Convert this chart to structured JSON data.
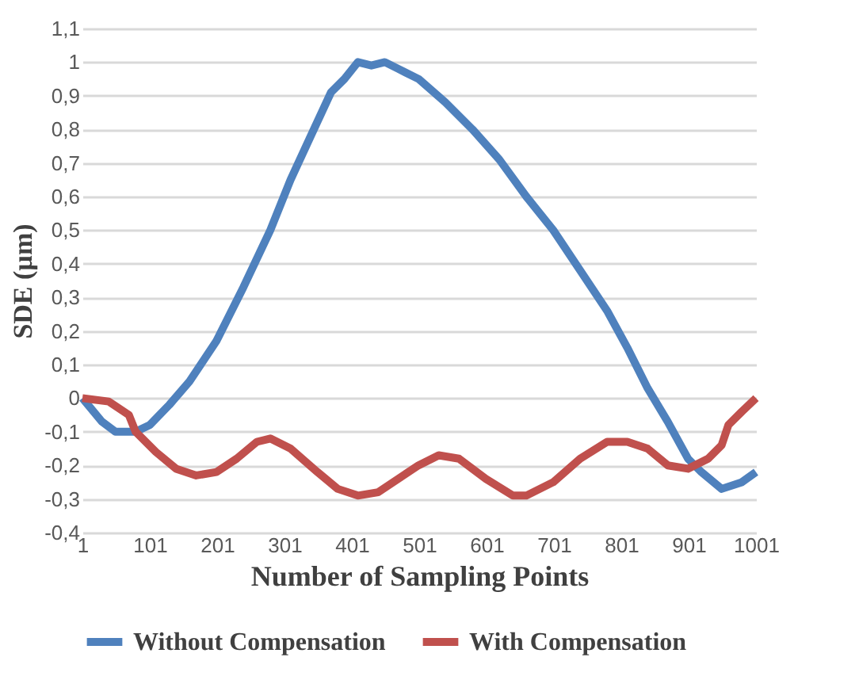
{
  "chart_data": {
    "type": "line",
    "xlabel": "Number of Sampling Points",
    "ylabel": "SDE (µm)",
    "xlim": [
      1,
      1001
    ],
    "xticks": [
      1,
      101,
      201,
      301,
      401,
      501,
      601,
      701,
      801,
      901,
      1001
    ],
    "ylim": [
      -0.4,
      1.1
    ],
    "yticks": [
      {
        "value": -0.4,
        "label": "-0,4"
      },
      {
        "value": -0.3,
        "label": "-0,3"
      },
      {
        "value": -0.2,
        "label": "-0,2"
      },
      {
        "value": -0.1,
        "label": "-0,1"
      },
      0,
      {
        "value": 0.1,
        "label": "0,1"
      },
      {
        "value": 0.2,
        "label": "0,2"
      },
      {
        "value": 0.3,
        "label": "0,3"
      },
      {
        "value": 0.4,
        "label": "0,4"
      },
      {
        "value": 0.5,
        "label": "0,5"
      },
      {
        "value": 0.6,
        "label": "0,6"
      },
      {
        "value": 0.7,
        "label": "0,7"
      },
      {
        "value": 0.8,
        "label": "0,8"
      },
      {
        "value": 0.9,
        "label": "0,9"
      },
      1,
      {
        "value": 1.1,
        "label": "1,1"
      }
    ],
    "grid": "y",
    "legend": "bottom",
    "marker": "none",
    "line_style": "solid",
    "series": [
      {
        "name": "Without Compensation",
        "color": "#4f81bd",
        "x": [
          1,
          30,
          50,
          80,
          101,
          130,
          160,
          200,
          240,
          280,
          310,
          340,
          370,
          390,
          410,
          430,
          450,
          470,
          500,
          540,
          580,
          620,
          660,
          700,
          740,
          780,
          810,
          840,
          870,
          900,
          920,
          950,
          980,
          1001
        ],
        "values": [
          0,
          -0.07,
          -0.1,
          -0.1,
          -0.08,
          -0.02,
          0.05,
          0.17,
          0.33,
          0.5,
          0.65,
          0.78,
          0.91,
          0.95,
          1.0,
          0.99,
          1.0,
          0.98,
          0.95,
          0.88,
          0.8,
          0.71,
          0.6,
          0.5,
          0.38,
          0.26,
          0.15,
          0.03,
          -0.07,
          -0.18,
          -0.22,
          -0.27,
          -0.25,
          -0.22
        ]
      },
      {
        "name": "With Compensation",
        "color": "#c0504d",
        "x": [
          1,
          40,
          70,
          80,
          110,
          140,
          170,
          200,
          230,
          260,
          280,
          310,
          350,
          380,
          410,
          440,
          470,
          500,
          530,
          560,
          600,
          640,
          660,
          700,
          740,
          780,
          810,
          840,
          870,
          900,
          930,
          950,
          960,
          980,
          1001
        ],
        "values": [
          0,
          -0.01,
          -0.05,
          -0.1,
          -0.16,
          -0.21,
          -0.23,
          -0.22,
          -0.18,
          -0.13,
          -0.12,
          -0.15,
          -0.22,
          -0.27,
          -0.29,
          -0.28,
          -0.24,
          -0.2,
          -0.17,
          -0.18,
          -0.24,
          -0.29,
          -0.29,
          -0.25,
          -0.18,
          -0.13,
          -0.13,
          -0.15,
          -0.2,
          -0.21,
          -0.18,
          -0.14,
          -0.08,
          -0.04,
          0
        ]
      }
    ]
  }
}
